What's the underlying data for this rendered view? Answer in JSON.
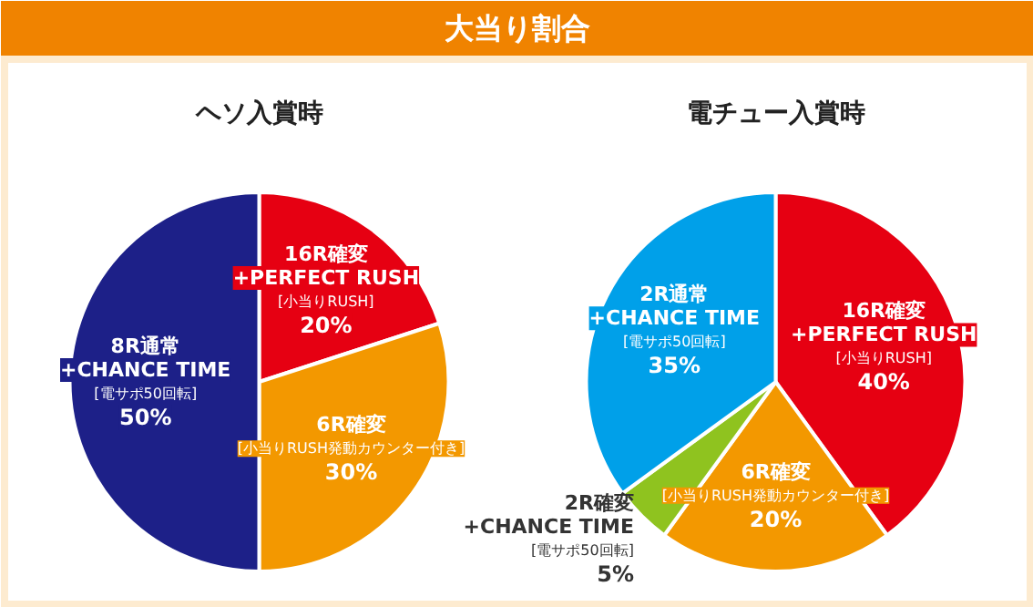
{
  "chart_data": [
    {
      "type": "pie",
      "title": "ヘソ入賞時",
      "annotations": [
        "大当り割合",
        {
          "text": "[小当りRUSH]",
          "x": "16R確変\n+PERFECT RUSH"
        },
        {
          "text": "[小当りRUSH発動カウンター付き]",
          "x": "6R確変"
        },
        {
          "text": "[電サポ50回転]",
          "x": "8R通常\n+CHANCE TIME"
        }
      ],
      "categories": [
        "16R確変\n+PERFECT RUSH",
        "6R確変",
        "8R通常\n+CHANCE TIME"
      ],
      "values": [
        20,
        30,
        50
      ],
      "value_labels": [
        "20%",
        "30%",
        "50%"
      ],
      "colors": [
        "#e60012",
        "#f39800",
        "#1d2088"
      ]
    },
    {
      "type": "pie",
      "title": "電チュー入賞時",
      "annotations": [
        {
          "text": "[小当りRUSH]",
          "x": "16R確変\n+PERFECT RUSH"
        },
        {
          "text": "[小当りRUSH発動カウンター付き]",
          "x": "6R確変"
        },
        {
          "text": "[電サポ50回転]",
          "x": "2R確変\n+CHANCE TIME"
        },
        {
          "text": "[電サポ50回転]",
          "x": "2R通常\n+CHANCE TIME"
        }
      ],
      "categories": [
        "16R確変\n+PERFECT RUSH",
        "6R確変",
        "2R確変\n+CHANCE TIME",
        "2R通常\n+CHANCE TIME"
      ],
      "values": [
        40,
        20,
        5,
        35
      ],
      "value_labels": [
        "40%",
        "20%",
        "5%",
        "35%"
      ],
      "colors": [
        "#e60012",
        "#f39800",
        "#8fc31f",
        "#00a0e9"
      ]
    }
  ]
}
